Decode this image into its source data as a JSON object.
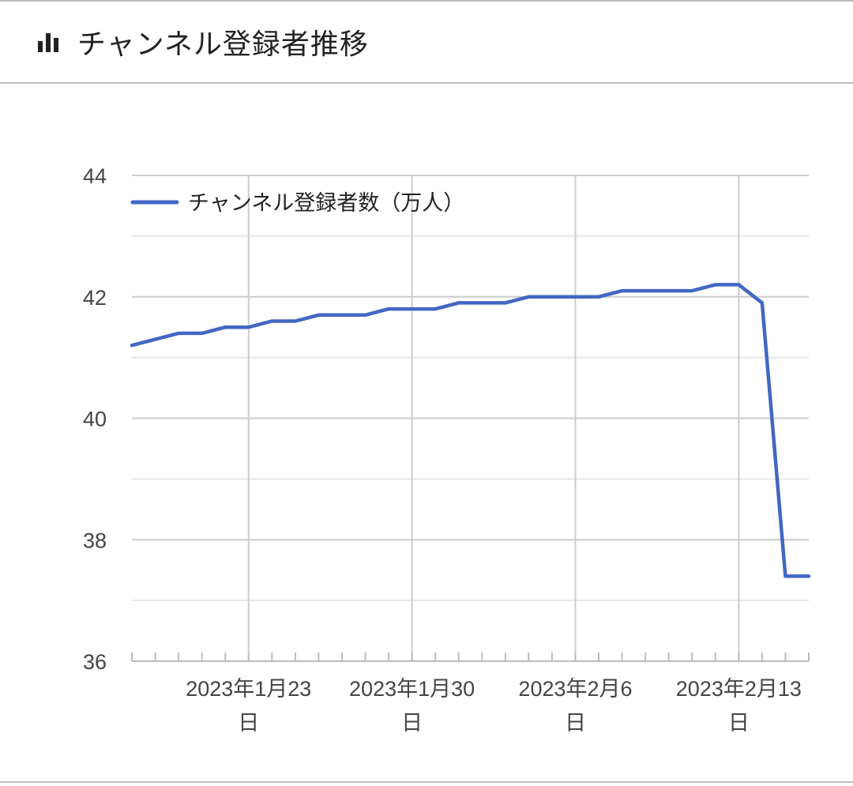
{
  "header": {
    "title": "チャンネル登録者推移",
    "icon": "bar-chart-icon"
  },
  "chart_data": {
    "type": "line",
    "title": "チャンネル登録者推移",
    "xlabel": "",
    "ylabel": "",
    "ylim": [
      36,
      44
    ],
    "yticks": [
      36,
      38,
      40,
      42,
      44
    ],
    "grid": true,
    "legend_position": "top-left",
    "x": [
      "2023-01-18",
      "2023-01-19",
      "2023-01-20",
      "2023-01-21",
      "2023-01-22",
      "2023-01-23",
      "2023-01-24",
      "2023-01-25",
      "2023-01-26",
      "2023-01-27",
      "2023-01-28",
      "2023-01-29",
      "2023-01-30",
      "2023-01-31",
      "2023-02-01",
      "2023-02-02",
      "2023-02-03",
      "2023-02-04",
      "2023-02-05",
      "2023-02-06",
      "2023-02-07",
      "2023-02-08",
      "2023-02-09",
      "2023-02-10",
      "2023-02-11",
      "2023-02-12",
      "2023-02-13",
      "2023-02-14",
      "2023-02-15",
      "2023-02-16"
    ],
    "xlim": [
      "2023-01-18",
      "2023-02-16"
    ],
    "xticks": [
      {
        "date": "2023-01-23",
        "line1": "2023年1月23",
        "line2": "日"
      },
      {
        "date": "2023-01-30",
        "line1": "2023年1月30",
        "line2": "日"
      },
      {
        "date": "2023-02-06",
        "line1": "2023年2月6",
        "line2": "日"
      },
      {
        "date": "2023-02-13",
        "line1": "2023年2月13",
        "line2": "日"
      }
    ],
    "series": [
      {
        "name": "チャンネル登録者数（万人）",
        "color": "#4267c4",
        "values": [
          41.2,
          41.3,
          41.4,
          41.4,
          41.5,
          41.5,
          41.6,
          41.6,
          41.7,
          41.7,
          41.7,
          41.8,
          41.8,
          41.8,
          41.9,
          41.9,
          41.9,
          42.0,
          42.0,
          42.0,
          42.0,
          42.1,
          42.1,
          42.1,
          42.1,
          42.2,
          42.2,
          41.9,
          37.4,
          37.4
        ]
      }
    ]
  }
}
